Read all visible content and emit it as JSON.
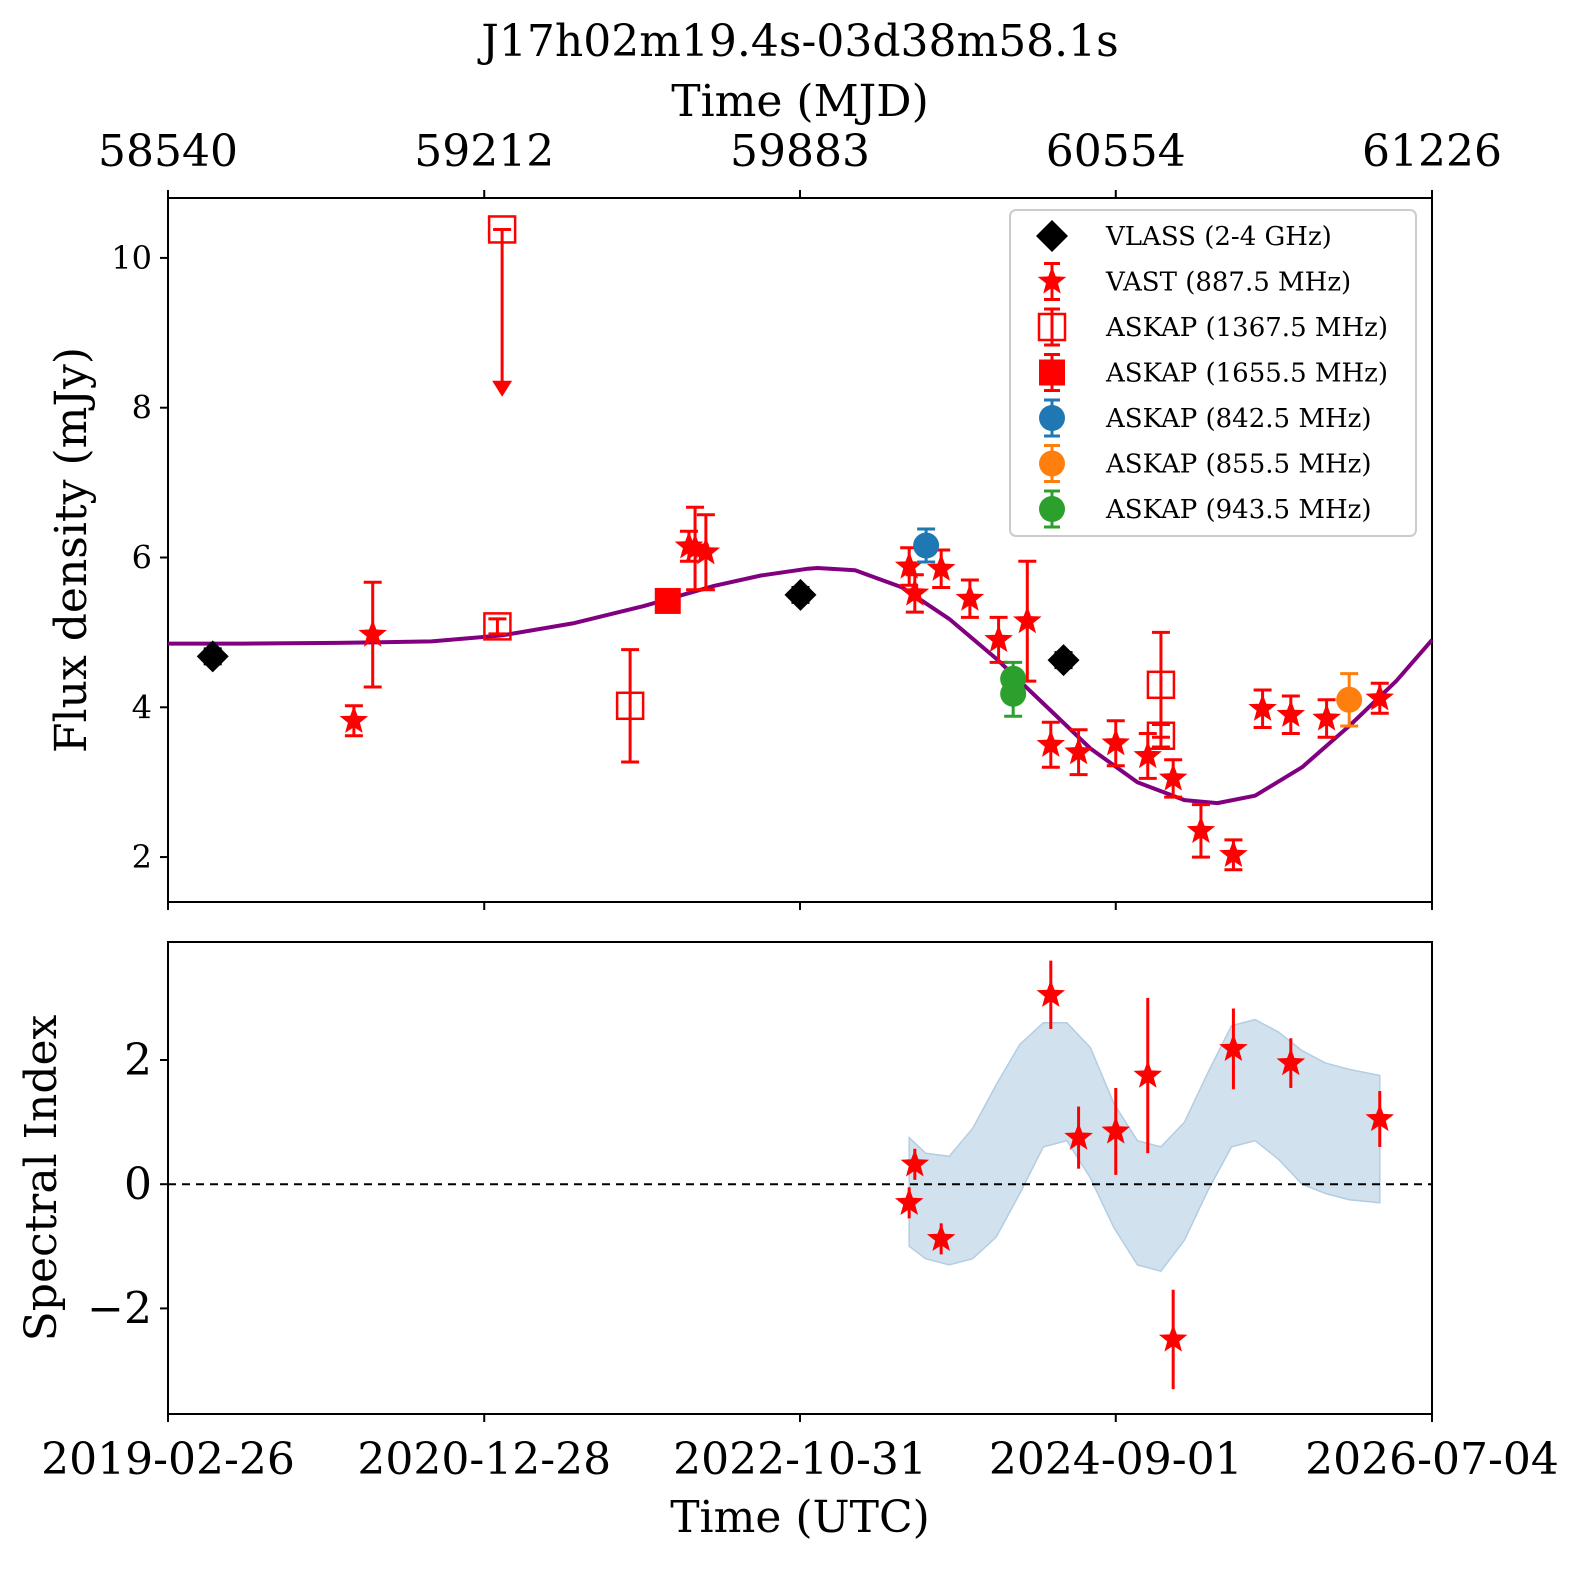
{
  "chart_data": [
    {
      "type": "scatter",
      "panel": "top",
      "title": "J17h02m19.4s-03d38m58.1s",
      "top_axis_label": "Time (MJD)",
      "top_ticks": [
        "58540",
        "59212",
        "59883",
        "60554",
        "61226"
      ],
      "ylabel": "Flux density (mJy)",
      "ylim": [
        1.4,
        10.8
      ],
      "y_ticks": [
        2,
        4,
        6,
        8,
        10
      ],
      "xlim_mjd": [
        58540,
        61226
      ],
      "grid": false,
      "legend_position": "upper-right",
      "series": [
        {
          "name": "VLASS (2-4 GHz)",
          "color": "#000000",
          "marker": "diamond",
          "points": [
            {
              "x": 58635,
              "y": 4.68,
              "err": 0.1
            },
            {
              "x": 59884,
              "y": 5.5,
              "err": 0.1
            },
            {
              "x": 60443,
              "y": 4.63,
              "err": 0.1
            }
          ]
        },
        {
          "name": "VAST (887.5 MHz)",
          "color": "#ff0000",
          "marker": "star",
          "points": [
            {
              "x": 58935,
              "y": 3.82,
              "err": 0.2
            },
            {
              "x": 58975,
              "y": 4.97,
              "err": 0.7
            },
            {
              "x": 59647,
              "y": 6.15,
              "err": 0.2
            },
            {
              "x": 59660,
              "y": 6.12,
              "err": 0.55
            },
            {
              "x": 59683,
              "y": 6.07,
              "err": 0.5
            },
            {
              "x": 60115,
              "y": 5.88,
              "err": 0.25
            },
            {
              "x": 60127,
              "y": 5.52,
              "err": 0.25
            },
            {
              "x": 60183,
              "y": 5.85,
              "err": 0.25
            },
            {
              "x": 60244,
              "y": 5.45,
              "err": 0.25
            },
            {
              "x": 60305,
              "y": 4.9,
              "err": 0.3
            },
            {
              "x": 60366,
              "y": 5.15,
              "err": 0.8
            },
            {
              "x": 60416,
              "y": 3.5,
              "err": 0.3
            },
            {
              "x": 60475,
              "y": 3.4,
              "err": 0.3
            },
            {
              "x": 60554,
              "y": 3.52,
              "err": 0.3
            },
            {
              "x": 60622,
              "y": 3.35,
              "err": 0.3
            },
            {
              "x": 60676,
              "y": 3.05,
              "err": 0.25
            },
            {
              "x": 60735,
              "y": 2.35,
              "err": 0.35
            },
            {
              "x": 60804,
              "y": 2.03,
              "err": 0.2
            },
            {
              "x": 60866,
              "y": 3.98,
              "err": 0.25
            },
            {
              "x": 60926,
              "y": 3.9,
              "err": 0.25
            },
            {
              "x": 61002,
              "y": 3.85,
              "err": 0.25
            },
            {
              "x": 61115,
              "y": 4.12,
              "err": 0.2
            }
          ]
        },
        {
          "name": "ASKAP (1367.5 MHz)",
          "color": "#ff0000",
          "marker": "open-square",
          "points": [
            {
              "x": 59240,
              "y": 5.08,
              "err": 0.1
            },
            {
              "x": 59250,
              "y": 10.38,
              "upper_limit": true,
              "arrow_to": 8.2
            },
            {
              "x": 59522,
              "y": 4.02,
              "err": 0.75
            },
            {
              "x": 60650,
              "y": 3.62,
              "err": 0.15
            },
            {
              "x": 60650,
              "y": 4.3,
              "err": 0.7
            }
          ]
        },
        {
          "name": "ASKAP (1655.5 MHz)",
          "color": "#ff0000",
          "marker": "square",
          "points": [
            {
              "x": 59602,
              "y": 5.42,
              "err": 0.1
            }
          ]
        },
        {
          "name": "ASKAP (842.5 MHz)",
          "color": "#1f77b4",
          "marker": "circle",
          "points": [
            {
              "x": 60151,
              "y": 6.16,
              "err": 0.22
            }
          ]
        },
        {
          "name": "ASKAP (855.5 MHz)",
          "color": "#ff7f0e",
          "marker": "circle",
          "points": [
            {
              "x": 61050,
              "y": 4.1,
              "err": 0.35
            }
          ]
        },
        {
          "name": "ASKAP (943.5 MHz)",
          "color": "#2ca02c",
          "marker": "circle",
          "points": [
            {
              "x": 60336,
              "y": 4.38,
              "err": 0.22
            },
            {
              "x": 60336,
              "y": 4.18,
              "err": 0.3
            }
          ]
        }
      ],
      "fit_curve": {
        "color": "#800080",
        "baseline": 4.85,
        "x": [
          58540,
          58700,
          58900,
          59100,
          59250,
          59400,
          59550,
          59700,
          59800,
          59900,
          59920,
          60000,
          60100,
          60200,
          60300,
          60400,
          60500,
          60600,
          60700,
          60770,
          60850,
          60950,
          61050,
          61150,
          61226
        ],
        "y": [
          4.85,
          4.85,
          4.86,
          4.88,
          4.96,
          5.12,
          5.35,
          5.62,
          5.76,
          5.85,
          5.86,
          5.83,
          5.6,
          5.18,
          4.65,
          4.05,
          3.45,
          3.0,
          2.76,
          2.72,
          2.82,
          3.2,
          3.75,
          4.35,
          4.9
        ]
      }
    },
    {
      "type": "scatter",
      "panel": "bottom",
      "xlabel": "Time (UTC)",
      "ylabel": "Spectral Index",
      "x_ticks": [
        "2019-02-26",
        "2020-12-28",
        "2022-10-31",
        "2024-09-01",
        "2026-07-04"
      ],
      "ylim": [
        -3.7,
        3.9
      ],
      "y_ticks": [
        "−2",
        "0",
        "2"
      ],
      "y_tick_values": [
        -2,
        0,
        2
      ],
      "reference_line": 0,
      "band_color": "#b3cde3",
      "series": [
        {
          "color": "#ff0000",
          "marker": "star",
          "points": [
            {
              "x": 60115,
              "y": -0.3,
              "err": 0.25
            },
            {
              "x": 60127,
              "y": 0.32,
              "err": 0.25
            },
            {
              "x": 60183,
              "y": -0.88,
              "err": 0.25
            },
            {
              "x": 60416,
              "y": 3.05,
              "err": 0.55
            },
            {
              "x": 60475,
              "y": 0.75,
              "err": 0.5
            },
            {
              "x": 60554,
              "y": 0.85,
              "err": 0.7
            },
            {
              "x": 60622,
              "y": 1.75,
              "err": 1.25
            },
            {
              "x": 60676,
              "y": -2.5,
              "err": 0.8
            },
            {
              "x": 60804,
              "y": 2.18,
              "err": 0.65
            },
            {
              "x": 60926,
              "y": 1.95,
              "err": 0.4
            },
            {
              "x": 61115,
              "y": 1.05,
              "err": 0.45
            }
          ]
        }
      ],
      "band": {
        "x": [
          60115,
          60150,
          60200,
          60250,
          60300,
          60350,
          60400,
          60450,
          60500,
          60550,
          60600,
          60650,
          60700,
          60750,
          60800,
          60850,
          60900,
          60950,
          61000,
          61050,
          61115
        ],
        "upper": [
          0.75,
          0.5,
          0.45,
          0.9,
          1.6,
          2.25,
          2.6,
          2.6,
          2.2,
          1.3,
          0.7,
          0.6,
          1.0,
          1.8,
          2.55,
          2.65,
          2.45,
          2.15,
          1.95,
          1.85,
          1.75
        ],
        "lower": [
          -1.0,
          -1.2,
          -1.3,
          -1.2,
          -0.85,
          -0.15,
          0.6,
          0.7,
          0.1,
          -0.7,
          -1.3,
          -1.4,
          -0.9,
          -0.1,
          0.6,
          0.7,
          0.4,
          0.0,
          -0.15,
          -0.25,
          -0.3
        ]
      }
    }
  ]
}
